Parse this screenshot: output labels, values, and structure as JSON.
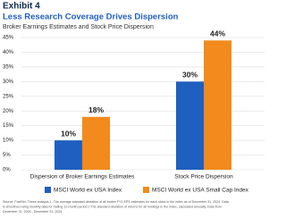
{
  "chart_data": {
    "type": "bar",
    "header": "Exhibit 4",
    "title": "Less Research Coverage Drives Dispersion",
    "subtitle": "Broker Earnings Estimates and Stock Price Dispersion",
    "categories": [
      "Dispersion of Broker Earnings Estimates",
      "Stock Price Dispersion"
    ],
    "series": [
      {
        "name": "MSCI World ex USA Index",
        "color": "#1f5fbf",
        "values": [
          10,
          30
        ],
        "value_labels": [
          "10%",
          "30%"
        ]
      },
      {
        "name": "MSCI World ex USA Small Cap Index",
        "color": "#f28a1e",
        "values": [
          18,
          44
        ],
        "value_labels": [
          "18%",
          "44%"
        ]
      }
    ],
    "ylim": [
      0,
      45
    ],
    "yticks": [
      {
        "value": 0,
        "label": "0%"
      },
      {
        "value": 5,
        "label": "5%"
      },
      {
        "value": 10,
        "label": "10%"
      },
      {
        "value": 15,
        "label": "15%"
      },
      {
        "value": 20,
        "label": "20%"
      },
      {
        "value": 25,
        "label": "25%"
      },
      {
        "value": 30,
        "label": "30%"
      },
      {
        "value": 35,
        "label": "35%"
      },
      {
        "value": 40,
        "label": "40%"
      },
      {
        "value": 45,
        "label": "45%"
      }
    ],
    "grid": true,
    "source": [
      "Source: FactSet. These analysis 1. The average standard deviation of all broker FY1 EPS estimates for each stock in the index as of December 31, 2024. Data",
      "is smoothed using monthly data for trailing 12-month period 2 The standard deviation of returns for all holdings in the index, calculated annually. Data from",
      "December 31, 2004 - December 31, 2024."
    ]
  }
}
